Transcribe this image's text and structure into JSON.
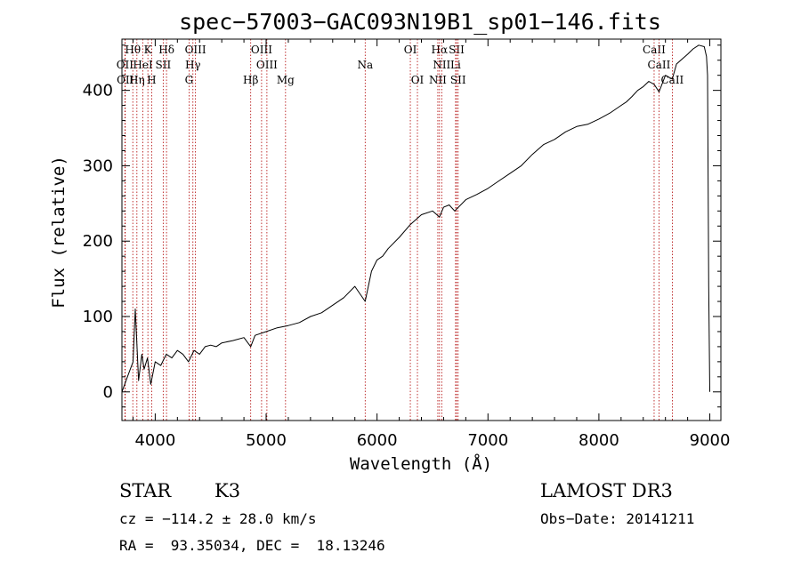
{
  "chart_data": {
    "type": "line",
    "title": "spec−57003−GAC093N19B1_sp01−146.fits",
    "xlabel": "Wavelength (Å)",
    "ylabel": "Flux (relative)",
    "xlim": [
      3700,
      9100
    ],
    "ylim": [
      -38,
      468
    ],
    "xticks": [
      4000,
      5000,
      6000,
      7000,
      8000,
      9000
    ],
    "yticks": [
      0,
      100,
      200,
      300,
      400
    ],
    "series": [
      {
        "name": "spectrum",
        "x": [
          3700,
          3750,
          3800,
          3820,
          3850,
          3880,
          3900,
          3930,
          3960,
          4000,
          4050,
          4100,
          4150,
          4200,
          4250,
          4300,
          4350,
          4400,
          4450,
          4500,
          4550,
          4600,
          4700,
          4800,
          4861,
          4900,
          5000,
          5100,
          5200,
          5300,
          5400,
          5500,
          5600,
          5700,
          5800,
          5893,
          5950,
          6000,
          6050,
          6100,
          6200,
          6300,
          6400,
          6500,
          6563,
          6600,
          6650,
          6700,
          6800,
          6900,
          7000,
          7100,
          7200,
          7300,
          7400,
          7500,
          7600,
          7700,
          7800,
          7900,
          8000,
          8100,
          8200,
          8250,
          8300,
          8350,
          8400,
          8450,
          8498,
          8542,
          8600,
          8662,
          8700,
          8800,
          8850,
          8900,
          8950,
          8970,
          8980,
          8990,
          9000
        ],
        "y": [
          0,
          20,
          40,
          110,
          15,
          50,
          30,
          45,
          10,
          40,
          35,
          50,
          45,
          55,
          50,
          40,
          55,
          50,
          60,
          62,
          60,
          65,
          68,
          72,
          60,
          75,
          80,
          85,
          88,
          92,
          100,
          105,
          115,
          125,
          140,
          120,
          160,
          175,
          180,
          190,
          205,
          222,
          235,
          240,
          232,
          245,
          248,
          240,
          255,
          262,
          270,
          280,
          290,
          300,
          315,
          328,
          335,
          345,
          352,
          355,
          362,
          370,
          380,
          385,
          392,
          400,
          405,
          412,
          408,
          398,
          420,
          415,
          435,
          448,
          455,
          460,
          458,
          445,
          420,
          140,
          0
        ]
      }
    ],
    "line_labels": [
      {
        "name": "Hθ",
        "wl": 3798,
        "row": 0
      },
      {
        "name": "K",
        "wl": 3934,
        "row": 0
      },
      {
        "name": "Hδ",
        "wl": 4102,
        "row": 0
      },
      {
        "name": "OIII",
        "wl": 4363,
        "row": 0
      },
      {
        "name": "OIII",
        "wl": 4959,
        "row": 0
      },
      {
        "name": "OI",
        "wl": 6300,
        "row": 0
      },
      {
        "name": "Hα",
        "wl": 6563,
        "row": 0
      },
      {
        "name": "SII",
        "wl": 6717,
        "row": 0
      },
      {
        "name": "CaII",
        "wl": 8498,
        "row": 0
      },
      {
        "name": "OII",
        "wl": 3727,
        "row": 1
      },
      {
        "name": "HeI",
        "wl": 3889,
        "row": 1
      },
      {
        "name": "SII",
        "wl": 4072,
        "row": 1
      },
      {
        "name": "Hγ",
        "wl": 4340,
        "row": 1
      },
      {
        "name": "OIII",
        "wl": 5007,
        "row": 1
      },
      {
        "name": "Na",
        "wl": 5893,
        "row": 1
      },
      {
        "name": "NII",
        "wl": 6583,
        "row": 1
      },
      {
        "name": "Li",
        "wl": 6708,
        "row": 1
      },
      {
        "name": "CaII",
        "wl": 8542,
        "row": 1
      },
      {
        "name": "OII",
        "wl": 3730,
        "row": 2
      },
      {
        "name": "Hη",
        "wl": 3835,
        "row": 2
      },
      {
        "name": "H",
        "wl": 3968,
        "row": 2
      },
      {
        "name": "G",
        "wl": 4305,
        "row": 2
      },
      {
        "name": "Hβ",
        "wl": 4861,
        "row": 2
      },
      {
        "name": "Mg",
        "wl": 5175,
        "row": 2
      },
      {
        "name": "OI",
        "wl": 6364,
        "row": 2
      },
      {
        "name": "NII",
        "wl": 6548,
        "row": 2
      },
      {
        "name": "SII",
        "wl": 6731,
        "row": 2
      },
      {
        "name": "CaII",
        "wl": 8662,
        "row": 2
      }
    ]
  },
  "info": {
    "object_class": "STAR",
    "subclass": "K3",
    "survey": "LAMOST DR3",
    "cz": "cz = −114.2 ± 28.0 km/s",
    "obs_date": "Obs−Date: 20141211",
    "coords": "RA =  93.35034, DEC =  18.13246"
  },
  "colors": {
    "spectrum": "#000000",
    "line_markers": "#b00000",
    "axes": "#000000"
  }
}
